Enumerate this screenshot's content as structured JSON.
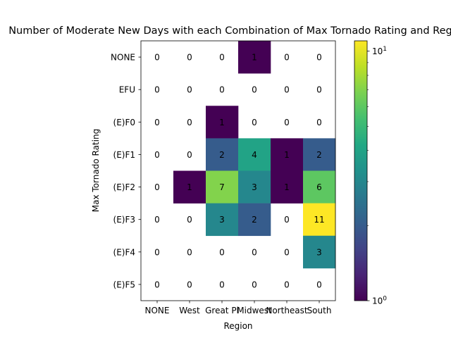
{
  "chart_data": {
    "type": "heatmap",
    "title": "Number of Moderate New Days with each Combination of Max Tornado Rating and Region",
    "xlabel": "Region",
    "ylabel": "Max Tornado Rating",
    "x_categories": [
      "NONE",
      "West",
      "Great Pl",
      "Midwest",
      "Northeast",
      "South"
    ],
    "y_categories": [
      "NONE",
      "EFU",
      "(E)F0",
      "(E)F1",
      "(E)F2",
      "(E)F3",
      "(E)F4",
      "(E)F5"
    ],
    "values": [
      [
        0,
        0,
        0,
        1,
        0,
        0
      ],
      [
        0,
        0,
        0,
        0,
        0,
        0
      ],
      [
        0,
        0,
        1,
        0,
        0,
        0
      ],
      [
        0,
        0,
        2,
        4,
        1,
        2
      ],
      [
        0,
        1,
        7,
        3,
        1,
        6
      ],
      [
        0,
        0,
        3,
        2,
        0,
        11
      ],
      [
        0,
        0,
        0,
        0,
        0,
        3
      ],
      [
        0,
        0,
        0,
        0,
        0,
        0
      ]
    ],
    "colorscale": "viridis",
    "color_scale_type": "log",
    "colorbar_range": [
      1,
      11
    ],
    "colorbar_major_ticks": [
      {
        "value": 1,
        "label": "10",
        "exp": "0"
      },
      {
        "value": 10,
        "label": "10",
        "exp": "1"
      }
    ],
    "colorbar_minor_ticks": [
      2,
      3,
      4,
      5,
      6,
      7,
      8,
      9
    ],
    "zero_cells_color": "#ffffff"
  }
}
